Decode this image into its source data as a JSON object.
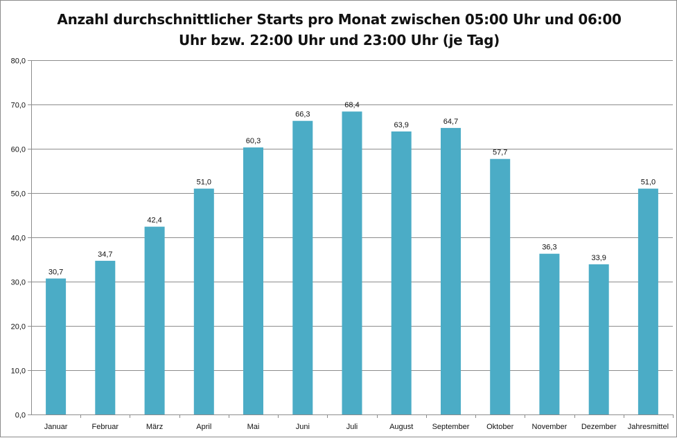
{
  "chart_data": {
    "type": "bar",
    "title_line1": "Anzahl durchschnittlicher Starts pro Monat zwischen 05:00 Uhr und 06:00",
    "title_line2": "Uhr bzw. 22:00 Uhr und 23:00 Uhr (je Tag)",
    "categories": [
      "Januar",
      "Februar",
      "März",
      "April",
      "Mai",
      "Juni",
      "Juli",
      "August",
      "September",
      "Oktober",
      "November",
      "Dezember",
      "Jahresmittel"
    ],
    "values": [
      30.7,
      34.7,
      42.4,
      51.0,
      60.3,
      66.3,
      68.4,
      63.9,
      64.7,
      57.7,
      36.3,
      33.9,
      51.0
    ],
    "data_labels": [
      "30,7",
      "34,7",
      "42,4",
      "51,0",
      "60,3",
      "66,3",
      "68,4",
      "63,9",
      "64,7",
      "57,7",
      "36,3",
      "33,9",
      "51,0"
    ],
    "ylim": [
      0,
      80
    ],
    "yticks": [
      0,
      10,
      20,
      30,
      40,
      50,
      60,
      70,
      80
    ],
    "ytick_labels": [
      "0,0",
      "10,0",
      "20,0",
      "30,0",
      "40,0",
      "50,0",
      "60,0",
      "70,0",
      "80,0"
    ],
    "xlabel": "",
    "ylabel": "",
    "grid": true,
    "legend": "none",
    "bar_color": "#4bacc6",
    "grid_color": "#8c8c8c",
    "axis_color": "#8c8c8c"
  }
}
